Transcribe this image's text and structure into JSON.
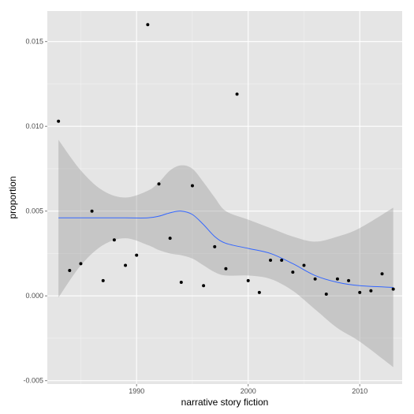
{
  "chart_data": {
    "type": "scatter",
    "title": "",
    "xlabel": "narrative story fiction",
    "ylabel": "proportion",
    "xlim": [
      1982.0,
      2013.8
    ],
    "ylim": [
      -0.0052,
      0.0168
    ],
    "x_ticks": [
      1990,
      2000,
      2010
    ],
    "x_tick_labels": [
      "1990",
      "2000",
      "2010"
    ],
    "y_ticks": [
      -0.005,
      0.0,
      0.005,
      0.01,
      0.015
    ],
    "y_tick_labels": [
      "-0.005",
      "0.000",
      "0.005",
      "0.010",
      "0.015"
    ],
    "grid": true,
    "background": "#e5e5e5",
    "gridline_color": "#ffffff",
    "point_color": "#000000",
    "smooth_line_color": "#3366ff",
    "ribbon_color": "#999999",
    "points": [
      {
        "x": 1983,
        "y": 0.0103
      },
      {
        "x": 1984,
        "y": 0.0015
      },
      {
        "x": 1985,
        "y": 0.0019
      },
      {
        "x": 1986,
        "y": 0.005
      },
      {
        "x": 1987,
        "y": 0.0009
      },
      {
        "x": 1988,
        "y": 0.0033
      },
      {
        "x": 1989,
        "y": 0.0018
      },
      {
        "x": 1990,
        "y": 0.0024
      },
      {
        "x": 1991,
        "y": 0.016
      },
      {
        "x": 1992,
        "y": 0.0066
      },
      {
        "x": 1993,
        "y": 0.0034
      },
      {
        "x": 1994,
        "y": 0.0008
      },
      {
        "x": 1995,
        "y": 0.0065
      },
      {
        "x": 1996,
        "y": 0.0006
      },
      {
        "x": 1997,
        "y": 0.0029
      },
      {
        "x": 1998,
        "y": 0.0016
      },
      {
        "x": 1999,
        "y": 0.0119
      },
      {
        "x": 2000,
        "y": 0.0009
      },
      {
        "x": 2001,
        "y": 0.0002
      },
      {
        "x": 2002,
        "y": 0.0021
      },
      {
        "x": 2003,
        "y": 0.0021
      },
      {
        "x": 2004,
        "y": 0.0014
      },
      {
        "x": 2005,
        "y": 0.0018
      },
      {
        "x": 2006,
        "y": 0.001
      },
      {
        "x": 2007,
        "y": 0.0001
      },
      {
        "x": 2008,
        "y": 0.001
      },
      {
        "x": 2009,
        "y": 0.0009
      },
      {
        "x": 2010,
        "y": 0.0002
      },
      {
        "x": 2011,
        "y": 0.0003
      },
      {
        "x": 2012,
        "y": 0.0013
      },
      {
        "x": 2013,
        "y": 0.0004
      }
    ],
    "smooth": {
      "x": [
        1983,
        1985,
        1987,
        1989,
        1991,
        1992,
        1993,
        1994,
        1995,
        1996,
        1997,
        1998,
        2000,
        2002,
        2004,
        2006,
        2008,
        2010,
        2013
      ],
      "y": [
        0.0046,
        0.0046,
        0.0046,
        0.0046,
        0.0046,
        0.0047,
        0.0049,
        0.005,
        0.0048,
        0.0042,
        0.0035,
        0.0031,
        0.0028,
        0.0025,
        0.0019,
        0.0012,
        0.0008,
        0.0006,
        0.0005
      ],
      "lower": [
        -0.0001,
        0.0018,
        0.003,
        0.0034,
        0.003,
        0.0027,
        0.0025,
        0.0024,
        0.0022,
        0.0018,
        0.0014,
        0.0012,
        0.0012,
        0.001,
        0.0003,
        -0.0008,
        -0.0019,
        -0.0027,
        -0.0042
      ],
      "upper": [
        0.0092,
        0.0074,
        0.0062,
        0.0058,
        0.0062,
        0.0067,
        0.0074,
        0.0077,
        0.0075,
        0.0067,
        0.0058,
        0.005,
        0.0045,
        0.004,
        0.0035,
        0.0032,
        0.0035,
        0.004,
        0.0052
      ]
    }
  }
}
